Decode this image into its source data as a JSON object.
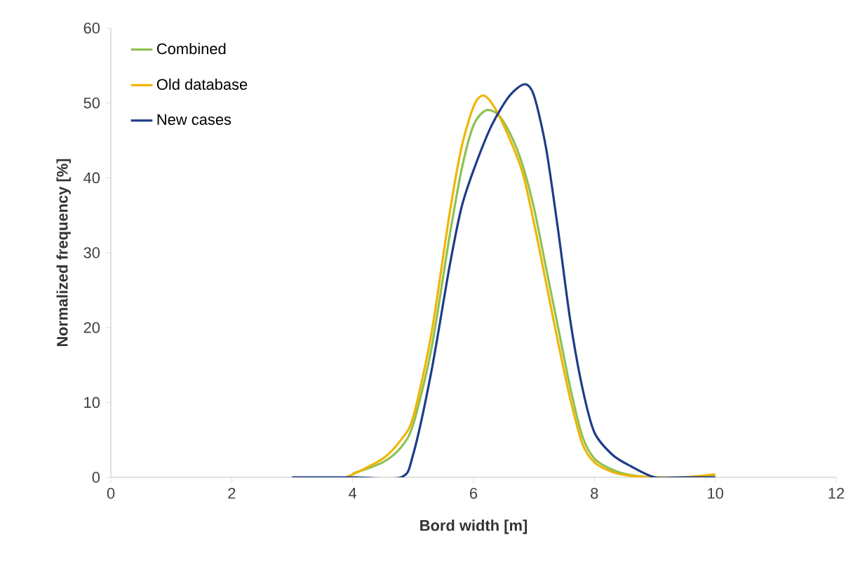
{
  "chart_data": {
    "type": "line",
    "xlabel": "Bord width [m]",
    "ylabel": "Normalized frequency [%]",
    "xlim": [
      0,
      12
    ],
    "ylim": [
      0,
      60
    ],
    "xticks": [
      0,
      2,
      4,
      6,
      8,
      10,
      12
    ],
    "yticks": [
      0,
      10,
      20,
      30,
      40,
      50,
      60
    ],
    "grid": false,
    "legend": "top left",
    "marker": "none",
    "line_style": "solid",
    "series": [
      {
        "name": "Combined",
        "color": "#8dc153",
        "x": [
          4,
          4.5,
          4.8,
          5.0,
          5.3,
          5.6,
          5.8,
          6.0,
          6.2,
          6.4,
          6.6,
          6.8,
          7.0,
          7.2,
          7.4,
          7.6,
          7.8,
          8.0,
          8.3,
          8.6,
          9.0,
          9.5,
          10
        ],
        "values": [
          0.5,
          2,
          4,
          7,
          17,
          32,
          41,
          47,
          49,
          48.5,
          46,
          42,
          36,
          28,
          20,
          12,
          5.5,
          2.5,
          1,
          0.3,
          0,
          0,
          0.3
        ]
      },
      {
        "name": "Old database",
        "color": "#f0b400",
        "x": [
          3.9,
          4.5,
          4.8,
          5.0,
          5.3,
          5.6,
          5.8,
          6.0,
          6.15,
          6.3,
          6.5,
          6.8,
          7.0,
          7.2,
          7.4,
          7.6,
          7.8,
          8.0,
          8.3,
          8.6,
          9.0,
          9.5,
          10
        ],
        "values": [
          0,
          2.5,
          5,
          8,
          19,
          35,
          44,
          49.5,
          51,
          50,
          47,
          41,
          34,
          26,
          18,
          10.5,
          4.5,
          2,
          0.7,
          0.2,
          0,
          0,
          0.4
        ]
      },
      {
        "name": "New cases",
        "color": "#1f3c88",
        "x": [
          3,
          4,
          4.8,
          5.0,
          5.3,
          5.6,
          5.8,
          6.0,
          6.3,
          6.6,
          6.85,
          7.0,
          7.2,
          7.4,
          7.6,
          7.8,
          8.0,
          8.3,
          8.6,
          9.0,
          9.5,
          10
        ],
        "values": [
          0,
          0,
          0,
          3,
          14,
          28,
          36,
          41,
          47,
          51,
          52.5,
          51,
          44,
          33,
          21,
          12,
          6,
          3,
          1.5,
          0,
          0,
          0
        ]
      }
    ]
  }
}
